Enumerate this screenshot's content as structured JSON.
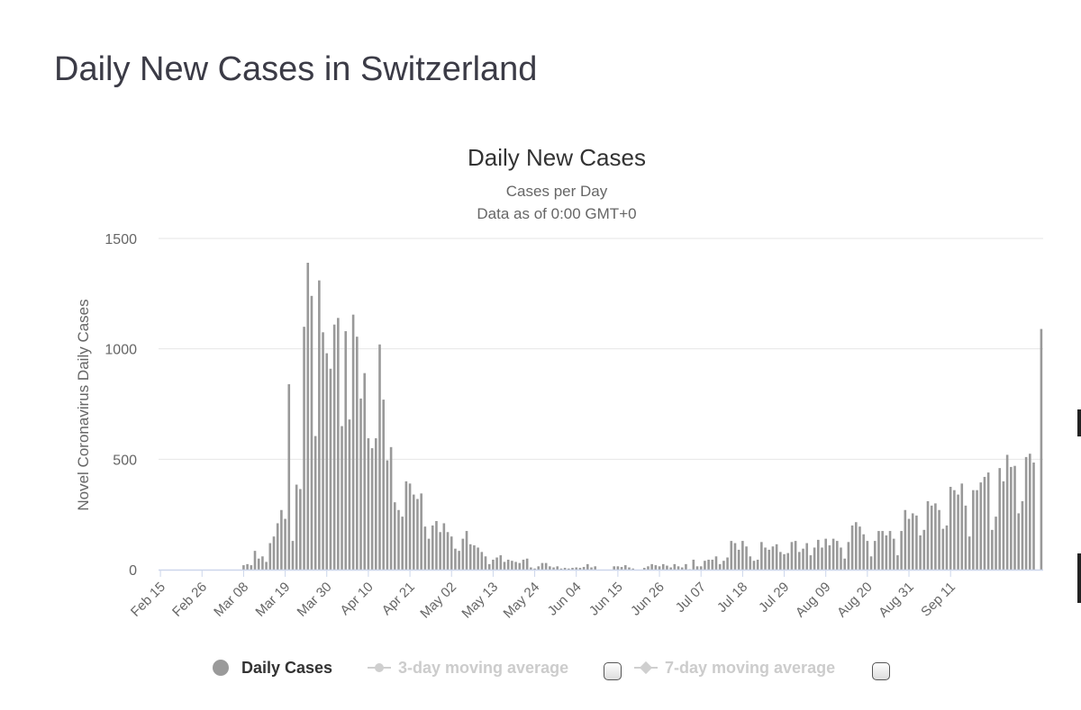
{
  "page_title": "Daily New Cases in Switzerland",
  "legend": {
    "daily_cases": "Daily Cases",
    "ma3": "3-day moving average",
    "ma7": "7-day moving average"
  },
  "colors": {
    "bar": "#999999",
    "grid": "#e6e6e6",
    "axis": "#ccd6eb"
  },
  "chart_data": {
    "type": "bar",
    "title": "Daily New Cases",
    "subtitle": "Cases per Day",
    "subtitle2": "Data as of 0:00 GMT+0",
    "ylabel": "Novel Coronavirus Daily Cases",
    "xlabel": "",
    "ylim": [
      0,
      1500
    ],
    "yticks": [
      0,
      500,
      1000,
      1500
    ],
    "x_tick_labels": [
      "Feb 15",
      "Feb 26",
      "Mar 08",
      "Mar 19",
      "Mar 30",
      "Apr 10",
      "Apr 21",
      "May 02",
      "May 13",
      "May 24",
      "Jun 04",
      "Jun 15",
      "Jun 26",
      "Jul 07",
      "Jul 18",
      "Jul 29",
      "Aug 09",
      "Aug 20",
      "Aug 31",
      "Sep 11"
    ],
    "start_date": "Feb 15",
    "series": [
      {
        "name": "Daily Cases",
        "values": [
          0,
          0,
          0,
          0,
          0,
          0,
          0,
          0,
          0,
          0,
          0,
          0,
          0,
          0,
          0,
          0,
          0,
          0,
          0,
          0,
          0,
          0,
          20,
          25,
          20,
          85,
          50,
          60,
          35,
          120,
          150,
          210,
          270,
          230,
          840,
          130,
          385,
          365,
          1100,
          1390,
          1240,
          605,
          1310,
          1075,
          980,
          910,
          1110,
          1140,
          650,
          1080,
          680,
          1155,
          1055,
          775,
          890,
          595,
          550,
          595,
          1020,
          770,
          495,
          555,
          305,
          270,
          240,
          400,
          390,
          340,
          320,
          345,
          195,
          140,
          200,
          220,
          170,
          210,
          170,
          150,
          95,
          85,
          140,
          175,
          115,
          110,
          100,
          80,
          60,
          25,
          45,
          55,
          65,
          35,
          45,
          40,
          35,
          30,
          45,
          50,
          10,
          5,
          15,
          30,
          30,
          15,
          10,
          15,
          5,
          8,
          5,
          8,
          10,
          8,
          12,
          25,
          10,
          15,
          0,
          0,
          0,
          0,
          15,
          15,
          12,
          20,
          10,
          5,
          0,
          0,
          8,
          15,
          25,
          20,
          15,
          25,
          18,
          10,
          25,
          15,
          10,
          25,
          2,
          45,
          15,
          15,
          40,
          45,
          45,
          60,
          25,
          40,
          55,
          130,
          120,
          90,
          130,
          105,
          60,
          40,
          45,
          125,
          100,
          90,
          105,
          115,
          80,
          70,
          75,
          125,
          130,
          80,
          95,
          120,
          65,
          100,
          135,
          100,
          140,
          110,
          140,
          130,
          100,
          50,
          125,
          200,
          215,
          195,
          160,
          130,
          60,
          130,
          175,
          175,
          155,
          175,
          140,
          65,
          175,
          270,
          230,
          255,
          245,
          155,
          180,
          310,
          290,
          300,
          270,
          185,
          200,
          375,
          360,
          340,
          390,
          290,
          150,
          360,
          360,
          395,
          420,
          440,
          180,
          240,
          460,
          400,
          520,
          465,
          470,
          255,
          310,
          510,
          525,
          485,
          0,
          1090
        ]
      }
    ]
  }
}
